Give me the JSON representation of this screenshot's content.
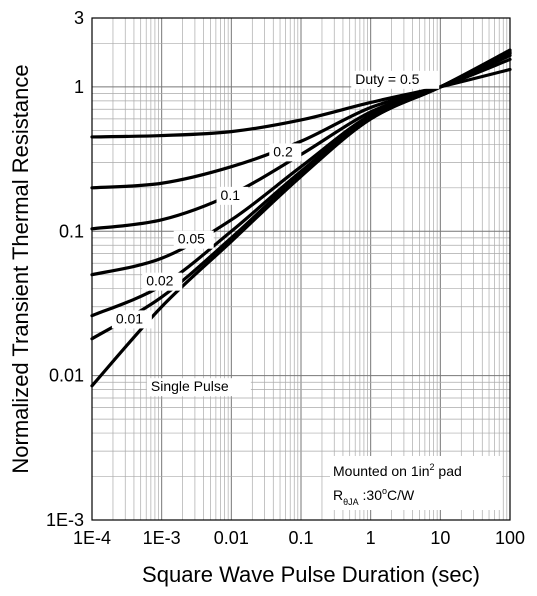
{
  "chart_data": {
    "type": "line",
    "title": "",
    "xlabel": "Square Wave Pulse Duration (sec)",
    "ylabel": "Normalized Transient Thermal Resistance",
    "x_scale": "log",
    "y_scale": "log",
    "xlim": [
      0.0001,
      100
    ],
    "ylim": [
      0.001,
      3
    ],
    "x_tick_labels": [
      {
        "value": 0.0001,
        "label": "1E-4"
      },
      {
        "value": 0.001,
        "label": "1E-3"
      },
      {
        "value": 0.01,
        "label": "0.01"
      },
      {
        "value": 0.1,
        "label": "0.1"
      },
      {
        "value": 1,
        "label": "1"
      },
      {
        "value": 10,
        "label": "10"
      },
      {
        "value": 100,
        "label": "100"
      }
    ],
    "y_tick_labels": [
      {
        "value": 0.001,
        "label": "1E-3"
      },
      {
        "value": 0.01,
        "label": "0.01"
      },
      {
        "value": 0.1,
        "label": "0.1"
      },
      {
        "value": 1,
        "label": "1"
      },
      {
        "value": 3,
        "label": "3"
      }
    ],
    "grid": true,
    "series": [
      {
        "name": "Duty = 0.5",
        "x": [
          0.0001,
          0.001,
          0.01,
          0.1,
          1,
          10,
          100
        ],
        "y": [
          0.45,
          0.46,
          0.49,
          0.59,
          0.78,
          1.0,
          1.32
        ]
      },
      {
        "name": "0.2",
        "x": [
          0.0001,
          0.001,
          0.01,
          0.1,
          1,
          10,
          100
        ],
        "y": [
          0.2,
          0.215,
          0.28,
          0.42,
          0.72,
          1.0,
          1.55
        ]
      },
      {
        "name": "0.1",
        "x": [
          0.0001,
          0.001,
          0.01,
          0.1,
          1,
          10,
          100
        ],
        "y": [
          0.104,
          0.12,
          0.18,
          0.34,
          0.67,
          1.0,
          1.65
        ]
      },
      {
        "name": "0.05",
        "x": [
          0.0001,
          0.001,
          0.01,
          0.1,
          1,
          10,
          100
        ],
        "y": [
          0.05,
          0.065,
          0.12,
          0.28,
          0.64,
          1.0,
          1.7
        ]
      },
      {
        "name": "0.02",
        "x": [
          0.0001,
          0.001,
          0.01,
          0.1,
          1,
          10,
          100
        ],
        "y": [
          0.026,
          0.042,
          0.1,
          0.26,
          0.62,
          1.0,
          1.72
        ]
      },
      {
        "name": "0.01",
        "x": [
          0.0001,
          0.001,
          0.01,
          0.1,
          1,
          10,
          100
        ],
        "y": [
          0.018,
          0.035,
          0.09,
          0.25,
          0.6,
          1.0,
          1.75
        ]
      },
      {
        "name": "Single Pulse",
        "x": [
          0.0001,
          0.001,
          0.01,
          0.1,
          1,
          10,
          100
        ],
        "y": [
          0.0085,
          0.03,
          0.085,
          0.24,
          0.6,
          1.0,
          1.8
        ]
      }
    ],
    "annotations": {
      "mounted": "Mounted on 1in",
      "mounted_sup": "2",
      "mounted_tail": " pad",
      "r_main": "R",
      "r_sub": "θJA",
      "r_value": " :30",
      "r_deg": "o",
      "r_unit": "C/W"
    }
  }
}
